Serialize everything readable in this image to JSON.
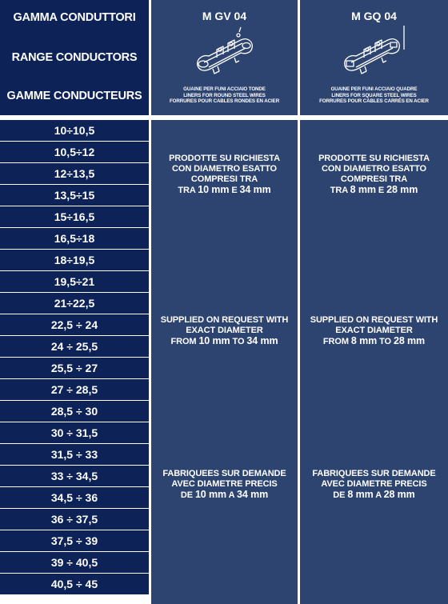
{
  "header": {
    "left": [
      "GAMMA CONDUTTORI",
      "RANGE CONDUCTORS",
      "GAMME CONDUCTEURS"
    ],
    "columns": [
      {
        "title": "M GV 04",
        "icon": "cable-liner-round-icon",
        "sub": [
          "GUAINE PER FUNI ACCIAIO TONDE",
          "LINERS FOR ROUND STEEL WIRES",
          "FORRURES POUR CABLES RONDES EN ACIER"
        ]
      },
      {
        "title": "M GQ 04",
        "icon": "cable-liner-square-icon",
        "sub": [
          "GUAINE PER FUNI ACCIAIO QUADRE",
          "LINERS FOR SQUARE STEEL WIRES",
          "FORRURES POUR CABLES CARRÉS EN ACIER"
        ]
      }
    ]
  },
  "ranges": [
    "10÷10,5",
    "10,5÷12",
    "12÷13,5",
    "13,5÷15",
    "15÷16,5",
    "16,5÷18",
    "18÷19,5",
    "19,5÷21",
    "21÷22,5",
    "22,5 ÷ 24",
    "24 ÷ 25,5",
    "25,5 ÷ 27",
    "27 ÷ 28,5",
    "28,5 ÷ 30",
    "30 ÷ 31,5",
    "31,5 ÷ 33",
    "33 ÷ 34,5",
    "34,5 ÷ 36",
    "36 ÷ 37,5",
    "37,5 ÷ 39",
    "39 ÷ 40,5",
    "40,5 ÷ 45"
  ],
  "columns_text": [
    {
      "it": {
        "l1": "PRODOTTE SU RICHIESTA",
        "l2": "CON DIAMETRO ESATTO",
        "l3": "COMPRESI TRA",
        "w1": "TRA",
        "v1": "10 mm",
        "w2": "E",
        "v2": "34 mm"
      },
      "en": {
        "l1": "SUPPLIED ON REQUEST WITH",
        "l2": "EXACT DIAMETER",
        "w1": "FROM",
        "v1": "10 mm",
        "w2": "TO",
        "v2": "34 mm"
      },
      "fr": {
        "l1": "FABRIQUEES SUR DEMANDE",
        "l2": "AVEC DIAMETRE PRECIS",
        "w1": "DE",
        "v1": "10 mm",
        "w2": "A",
        "v2": "34 mm"
      }
    },
    {
      "it": {
        "l1": "PRODOTTE SU RICHIESTA",
        "l2": "CON DIAMETRO ESATTO",
        "l3": "COMPRESI TRA",
        "w1": "TRA",
        "v1": "8 mm",
        "w2": "E",
        "v2": "28 mm"
      },
      "en": {
        "l1": "SUPPLIED ON REQUEST WITH",
        "l2": "EXACT DIAMETER",
        "w1": "FROM",
        "v1": "8 mm",
        "w2": "TO",
        "v2": "28 mm"
      },
      "fr": {
        "l1": "FABRIQUEES SUR DEMANDE",
        "l2": "AVEC DIAMETRE PRECIS",
        "w1": "DE",
        "v1": "8 mm",
        "w2": "A",
        "v2": "28 mm"
      }
    }
  ],
  "colors": {
    "navy": "#0d2256",
    "slate": "#2e4470",
    "text": "#ffffff"
  }
}
